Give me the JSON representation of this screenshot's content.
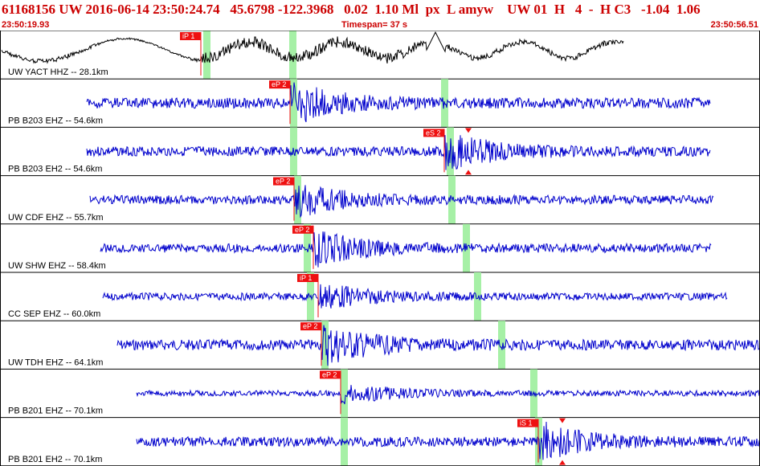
{
  "header": {
    "title": "61168156 UW 2016-06-14 23:50:24.74   45.6798 -122.3968   0.02  1.10 Ml  px  L amyw    UW 01  H   4  -  H C3   -1.04  1.06",
    "start_time": "23:50:19.93",
    "timespan": "Timespan=  37 s",
    "end_time": "23:50:56.51"
  },
  "colors": {
    "accent": "#cc0000",
    "trace_primary": "#000000",
    "trace": "#0000cc",
    "pick_bg": "#ee1111",
    "window": "#a6f0a6",
    "grid": "#000000"
  },
  "channels": [
    {
      "label": "UW YACT HHZ -- 28.1km",
      "color": "#000000",
      "picks": [
        {
          "label": "iP 1",
          "arrow": ""
        }
      ]
    },
    {
      "label": "PB B203 EHZ -- 54.6km",
      "color": "#0000cc",
      "picks": [
        {
          "label": "eP 2",
          "arrow": ""
        }
      ]
    },
    {
      "label": "PB B203 EH2 -- 54.6km",
      "color": "#0000cc",
      "picks": [
        {
          "label": "eS 2",
          "arrow": "both"
        }
      ]
    },
    {
      "label": "UW CDF EHZ -- 55.7km",
      "color": "#0000cc",
      "picks": [
        {
          "label": "eP 2",
          "arrow": ""
        }
      ]
    },
    {
      "label": "UW SHW EHZ -- 58.4km",
      "color": "#0000cc",
      "picks": [
        {
          "label": "eP 2",
          "arrow": ""
        }
      ]
    },
    {
      "label": "CC SEP EHZ -- 60.0km",
      "color": "#0000cc",
      "picks": [
        {
          "label": "iP 1",
          "arrow": ""
        }
      ]
    },
    {
      "label": "UW TDH EHZ -- 64.1km",
      "color": "#0000cc",
      "picks": [
        {
          "label": "eP 2",
          "arrow": ""
        }
      ]
    },
    {
      "label": "PB B201 EHZ -- 70.1km",
      "color": "#0000cc",
      "picks": [
        {
          "label": "eP 2",
          "arrow": ""
        }
      ]
    },
    {
      "label": "PB B201 EH2 -- 70.1km",
      "color": "#0000cc",
      "picks": [
        {
          "label": "iS 1",
          "arrow": "both"
        }
      ]
    }
  ]
}
